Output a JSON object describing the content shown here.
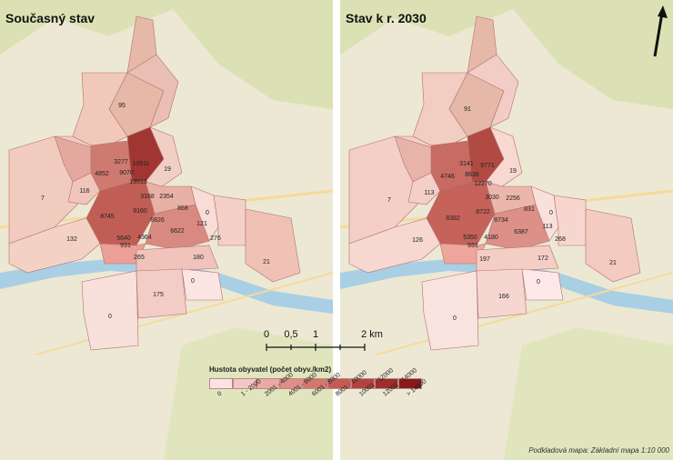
{
  "panels": {
    "left": {
      "title": "Současný stav",
      "labels": {
        "n95": "95",
        "n19": "19",
        "n3277": "3277",
        "n10911": "10911",
        "n9070": "9070",
        "n13513": "13513",
        "n4852": "4852",
        "n116": "116",
        "n7": "7",
        "n3168": "3168",
        "n2354": "2354",
        "n8745": "8745",
        "n9160": "9160",
        "n6826": "6826",
        "n868": "868",
        "n0a": "0",
        "n121": "121",
        "n132": "132",
        "n5640": "5640",
        "n931": "931",
        "n4364": "4364",
        "n6622": "6622",
        "n276": "276",
        "n265": "265",
        "n180": "180",
        "n21": "21",
        "n0b": "0",
        "n175": "175",
        "n0c": "0"
      }
    },
    "right": {
      "title": "Stav k r. 2030",
      "labels": {
        "n91": "91",
        "n19": "19",
        "n3141": "3141",
        "n9771": "9771",
        "n8638": "8638",
        "n12270": "12270",
        "n4746": "4746",
        "n113": "113",
        "n7": "7",
        "n3030": "3030",
        "n2256": "2256",
        "n8382": "8382",
        "n8722": "8722",
        "n8734": "8734",
        "n831": "831",
        "n0a": "0",
        "n113b": "113",
        "n126": "126",
        "n5350": "5350",
        "n931": "931",
        "n4180": "4180",
        "n6387": "6387",
        "n268": "268",
        "n197": "197",
        "n172": "172",
        "n21": "21",
        "n0b": "0",
        "n166": "166",
        "n0c": "0"
      }
    }
  },
  "scalebar": {
    "t0": "0",
    "t1": "0,5",
    "t2": "1",
    "t3": "2 km"
  },
  "legend": {
    "title": "Hustota obyvatel (počet obyv./km2)",
    "classes": [
      {
        "label": "0",
        "color": "#fbe3e3"
      },
      {
        "label": "1 - 2000",
        "color": "#f4c7c4"
      },
      {
        "label": "2001 - 4000",
        "color": "#eaa9a4"
      },
      {
        "label": "4001 - 6000",
        "color": "#e08e87"
      },
      {
        "label": "6001 - 8000",
        "color": "#d4766e"
      },
      {
        "label": "8001 - 10000",
        "color": "#c55c54"
      },
      {
        "label": "10001 - 12000",
        "color": "#b2443e"
      },
      {
        "label": "12001 - 14000",
        "color": "#9c2e2b"
      },
      {
        "label": "> 14000",
        "color": "#8a1a1a"
      }
    ]
  },
  "credit": "Podkladová mapa: Základní mapa 1:10 000",
  "colors": {
    "base": "#ece8d3",
    "forest": "#d7dfad",
    "river": "#a9cfe4",
    "road": "#f6d99c"
  }
}
